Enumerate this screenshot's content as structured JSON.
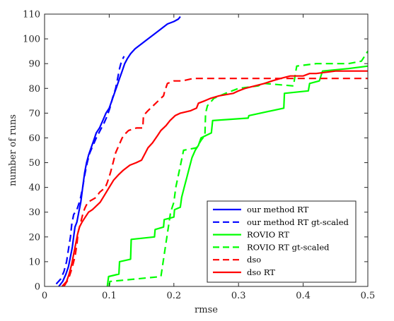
{
  "chart_data": {
    "type": "line",
    "title": "",
    "xlabel": "rmse",
    "ylabel": "number of runs",
    "xlim": [
      0,
      0.5
    ],
    "ylim": [
      0,
      110
    ],
    "xticks": [
      0,
      0.1,
      0.2,
      0.3,
      0.4,
      0.5
    ],
    "xtick_labels": [
      "0",
      "0.1",
      "0.2",
      "0.3",
      "0.4",
      "0.5"
    ],
    "yticks": [
      0,
      10,
      20,
      30,
      40,
      50,
      60,
      70,
      80,
      90,
      100,
      110
    ],
    "ytick_labels": [
      "0",
      "10",
      "20",
      "30",
      "40",
      "50",
      "60",
      "70",
      "80",
      "90",
      "100",
      "110"
    ],
    "grid": false,
    "legend_position": "bottom-right",
    "series": [
      {
        "name": "our method RT",
        "color": "#0000ff",
        "dash": "solid",
        "points": [
          [
            0.022,
            0
          ],
          [
            0.028,
            2
          ],
          [
            0.033,
            5
          ],
          [
            0.037,
            8
          ],
          [
            0.04,
            12
          ],
          [
            0.043,
            16
          ],
          [
            0.045,
            20
          ],
          [
            0.047,
            24
          ],
          [
            0.05,
            26
          ],
          [
            0.053,
            30
          ],
          [
            0.056,
            34
          ],
          [
            0.058,
            38
          ],
          [
            0.06,
            42
          ],
          [
            0.062,
            46
          ],
          [
            0.065,
            50
          ],
          [
            0.068,
            53
          ],
          [
            0.072,
            56
          ],
          [
            0.076,
            59
          ],
          [
            0.08,
            62
          ],
          [
            0.085,
            64
          ],
          [
            0.09,
            67
          ],
          [
            0.095,
            70
          ],
          [
            0.1,
            72
          ],
          [
            0.104,
            75
          ],
          [
            0.108,
            78
          ],
          [
            0.112,
            81
          ],
          [
            0.116,
            84
          ],
          [
            0.12,
            87
          ],
          [
            0.124,
            90
          ],
          [
            0.128,
            92
          ],
          [
            0.133,
            94
          ],
          [
            0.14,
            96
          ],
          [
            0.15,
            98
          ],
          [
            0.16,
            100
          ],
          [
            0.17,
            102
          ],
          [
            0.18,
            104
          ],
          [
            0.19,
            106
          ],
          [
            0.2,
            107
          ],
          [
            0.207,
            108
          ],
          [
            0.21,
            109
          ]
        ]
      },
      {
        "name": "our method RT gt-scaled",
        "color": "#0000ff",
        "dash": "dashed",
        "points": [
          [
            0.018,
            1
          ],
          [
            0.025,
            3
          ],
          [
            0.03,
            6
          ],
          [
            0.034,
            10
          ],
          [
            0.037,
            15
          ],
          [
            0.04,
            20
          ],
          [
            0.042,
            25
          ],
          [
            0.045,
            29
          ],
          [
            0.05,
            31
          ],
          [
            0.055,
            35
          ],
          [
            0.059,
            40
          ],
          [
            0.062,
            45
          ],
          [
            0.066,
            50
          ],
          [
            0.07,
            54
          ],
          [
            0.075,
            57
          ],
          [
            0.08,
            60
          ],
          [
            0.086,
            63
          ],
          [
            0.092,
            66
          ],
          [
            0.097,
            69
          ],
          [
            0.101,
            72
          ],
          [
            0.105,
            76
          ],
          [
            0.11,
            80
          ],
          [
            0.113,
            84
          ],
          [
            0.116,
            88
          ],
          [
            0.119,
            91
          ],
          [
            0.123,
            93
          ]
        ]
      },
      {
        "name": "ROVIO RT",
        "color": "#00ff00",
        "dash": "solid",
        "points": [
          [
            0.097,
            0
          ],
          [
            0.098,
            2
          ],
          [
            0.099,
            4
          ],
          [
            0.115,
            5
          ],
          [
            0.116,
            10
          ],
          [
            0.133,
            11
          ],
          [
            0.134,
            19
          ],
          [
            0.17,
            20
          ],
          [
            0.171,
            23
          ],
          [
            0.184,
            24
          ],
          [
            0.185,
            27
          ],
          [
            0.2,
            28
          ],
          [
            0.201,
            31
          ],
          [
            0.21,
            32
          ],
          [
            0.212,
            36
          ],
          [
            0.216,
            40
          ],
          [
            0.22,
            44
          ],
          [
            0.224,
            48
          ],
          [
            0.228,
            52
          ],
          [
            0.233,
            55
          ],
          [
            0.238,
            57
          ],
          [
            0.242,
            60
          ],
          [
            0.25,
            61
          ],
          [
            0.258,
            62
          ],
          [
            0.26,
            67
          ],
          [
            0.315,
            68
          ],
          [
            0.316,
            69
          ],
          [
            0.37,
            72
          ],
          [
            0.371,
            78
          ],
          [
            0.408,
            79
          ],
          [
            0.41,
            82
          ],
          [
            0.425,
            83
          ],
          [
            0.43,
            87
          ],
          [
            0.47,
            88
          ],
          [
            0.5,
            89
          ]
        ]
      },
      {
        "name": "ROVIO RT gt-scaled",
        "color": "#00ff00",
        "dash": "dashed",
        "points": [
          [
            0.1,
            0
          ],
          [
            0.101,
            2
          ],
          [
            0.18,
            4
          ],
          [
            0.195,
            30
          ],
          [
            0.2,
            34
          ],
          [
            0.203,
            40
          ],
          [
            0.207,
            45
          ],
          [
            0.211,
            50
          ],
          [
            0.215,
            55
          ],
          [
            0.235,
            56
          ],
          [
            0.242,
            59
          ],
          [
            0.248,
            61
          ],
          [
            0.249,
            70
          ],
          [
            0.252,
            73
          ],
          [
            0.262,
            76
          ],
          [
            0.28,
            78
          ],
          [
            0.3,
            80
          ],
          [
            0.33,
            81
          ],
          [
            0.34,
            82
          ],
          [
            0.385,
            81
          ],
          [
            0.388,
            86
          ],
          [
            0.39,
            89
          ],
          [
            0.42,
            90
          ],
          [
            0.47,
            90
          ],
          [
            0.49,
            91
          ],
          [
            0.5,
            95
          ]
        ]
      },
      {
        "name": "dso",
        "color": "#ff0000",
        "dash": "dashed",
        "points": [
          [
            0.03,
            0
          ],
          [
            0.037,
            3
          ],
          [
            0.042,
            7
          ],
          [
            0.047,
            12
          ],
          [
            0.05,
            17
          ],
          [
            0.052,
            22
          ],
          [
            0.055,
            25
          ],
          [
            0.06,
            30
          ],
          [
            0.063,
            32
          ],
          [
            0.067,
            34
          ],
          [
            0.08,
            36
          ],
          [
            0.085,
            38
          ],
          [
            0.094,
            40
          ],
          [
            0.097,
            42
          ],
          [
            0.102,
            46
          ],
          [
            0.106,
            50
          ],
          [
            0.11,
            54
          ],
          [
            0.115,
            57
          ],
          [
            0.12,
            60
          ],
          [
            0.126,
            62
          ],
          [
            0.13,
            63
          ],
          [
            0.142,
            64
          ],
          [
            0.152,
            64
          ],
          [
            0.153,
            69
          ],
          [
            0.16,
            71
          ],
          [
            0.168,
            73
          ],
          [
            0.18,
            76
          ],
          [
            0.184,
            77
          ],
          [
            0.186,
            79
          ],
          [
            0.19,
            82
          ],
          [
            0.2,
            83
          ],
          [
            0.213,
            83
          ],
          [
            0.23,
            84
          ],
          [
            0.3,
            84
          ],
          [
            0.4,
            84
          ],
          [
            0.5,
            84
          ]
        ]
      },
      {
        "name": "dso RT",
        "color": "#ff0000",
        "dash": "solid",
        "points": [
          [
            0.027,
            0
          ],
          [
            0.034,
            2
          ],
          [
            0.038,
            5
          ],
          [
            0.042,
            9
          ],
          [
            0.045,
            13
          ],
          [
            0.048,
            17
          ],
          [
            0.051,
            21
          ],
          [
            0.054,
            24
          ],
          [
            0.058,
            26
          ],
          [
            0.063,
            28
          ],
          [
            0.068,
            30
          ],
          [
            0.074,
            31
          ],
          [
            0.078,
            32
          ],
          [
            0.086,
            34
          ],
          [
            0.093,
            37
          ],
          [
            0.1,
            40
          ],
          [
            0.107,
            43
          ],
          [
            0.114,
            45
          ],
          [
            0.122,
            47
          ],
          [
            0.132,
            49
          ],
          [
            0.142,
            50
          ],
          [
            0.15,
            51
          ],
          [
            0.156,
            54
          ],
          [
            0.16,
            56
          ],
          [
            0.167,
            58
          ],
          [
            0.175,
            61
          ],
          [
            0.18,
            63
          ],
          [
            0.188,
            65
          ],
          [
            0.194,
            67
          ],
          [
            0.202,
            69
          ],
          [
            0.21,
            70
          ],
          [
            0.226,
            71
          ],
          [
            0.235,
            72
          ],
          [
            0.238,
            74
          ],
          [
            0.248,
            75
          ],
          [
            0.257,
            76
          ],
          [
            0.27,
            77
          ],
          [
            0.292,
            78
          ],
          [
            0.3,
            79
          ],
          [
            0.31,
            80
          ],
          [
            0.325,
            81
          ],
          [
            0.34,
            82
          ],
          [
            0.352,
            83
          ],
          [
            0.365,
            84
          ],
          [
            0.38,
            85
          ],
          [
            0.4,
            85
          ],
          [
            0.41,
            86
          ],
          [
            0.42,
            86
          ],
          [
            0.45,
            87
          ],
          [
            0.5,
            87
          ]
        ]
      }
    ]
  }
}
